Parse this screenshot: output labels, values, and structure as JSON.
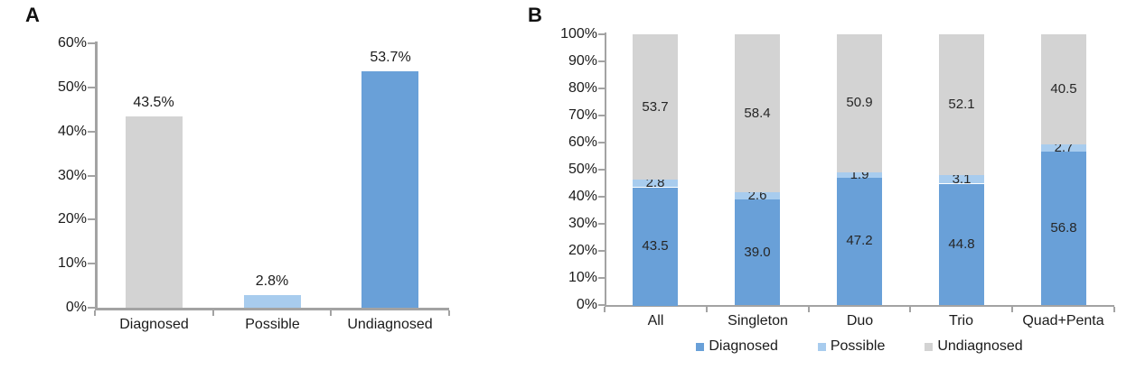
{
  "panels": [
    {
      "label": "A"
    },
    {
      "label": "B"
    }
  ],
  "colors": {
    "diagnosed_blue": "#69A0D8",
    "possible_light_blue": "#A8CCEE",
    "undiagnosed_gray": "#D3D3D3",
    "axis_gray": "#A3A3A3",
    "label_text": "#1b1b1b"
  },
  "chart_data": [
    {
      "type": "bar",
      "panel": "A",
      "categories": [
        "Diagnosed",
        "Possible",
        "Undiagnosed"
      ],
      "values": [
        43.5,
        2.8,
        53.7
      ],
      "value_labels": [
        "43.5%",
        "2.8%",
        "53.7%"
      ],
      "bar_colors": [
        "#D3D3D3",
        "#A8CCEE",
        "#69A0D8"
      ],
      "title": "",
      "xlabel": "",
      "ylabel": "",
      "ylim": [
        0,
        60
      ],
      "ytick_step": 10,
      "ytick_labels": [
        "0%",
        "10%",
        "20%",
        "30%",
        "40%",
        "50%",
        "60%"
      ],
      "grid": false,
      "legend_position": "none"
    },
    {
      "type": "bar",
      "subtype": "stacked",
      "panel": "B",
      "categories": [
        "All",
        "Singleton",
        "Duo",
        "Trio",
        "Quad+Penta"
      ],
      "series": [
        {
          "name": "Diagnosed",
          "color": "#69A0D8",
          "values": [
            43.5,
            39.0,
            47.2,
            44.8,
            56.8
          ],
          "value_labels": [
            "43.5",
            "39.0",
            "47.2",
            "44.8",
            "56.8"
          ]
        },
        {
          "name": "Possible",
          "color": "#A8CCEE",
          "values": [
            2.8,
            2.6,
            1.9,
            3.1,
            2.7
          ],
          "value_labels": [
            "2.8",
            "2.6",
            "1.9",
            "3.1",
            "2.7"
          ]
        },
        {
          "name": "Undiagnosed",
          "color": "#D3D3D3",
          "values": [
            53.7,
            58.4,
            50.9,
            52.1,
            40.5
          ],
          "value_labels": [
            "53.7",
            "58.4",
            "50.9",
            "52.1",
            "40.5"
          ]
        }
      ],
      "title": "",
      "xlabel": "",
      "ylabel": "",
      "ylim": [
        0,
        100
      ],
      "ytick_step": 10,
      "ytick_labels": [
        "0%",
        "10%",
        "20%",
        "30%",
        "40%",
        "50%",
        "60%",
        "70%",
        "80%",
        "90%",
        "100%"
      ],
      "grid": false,
      "legend_position": "bottom"
    }
  ]
}
